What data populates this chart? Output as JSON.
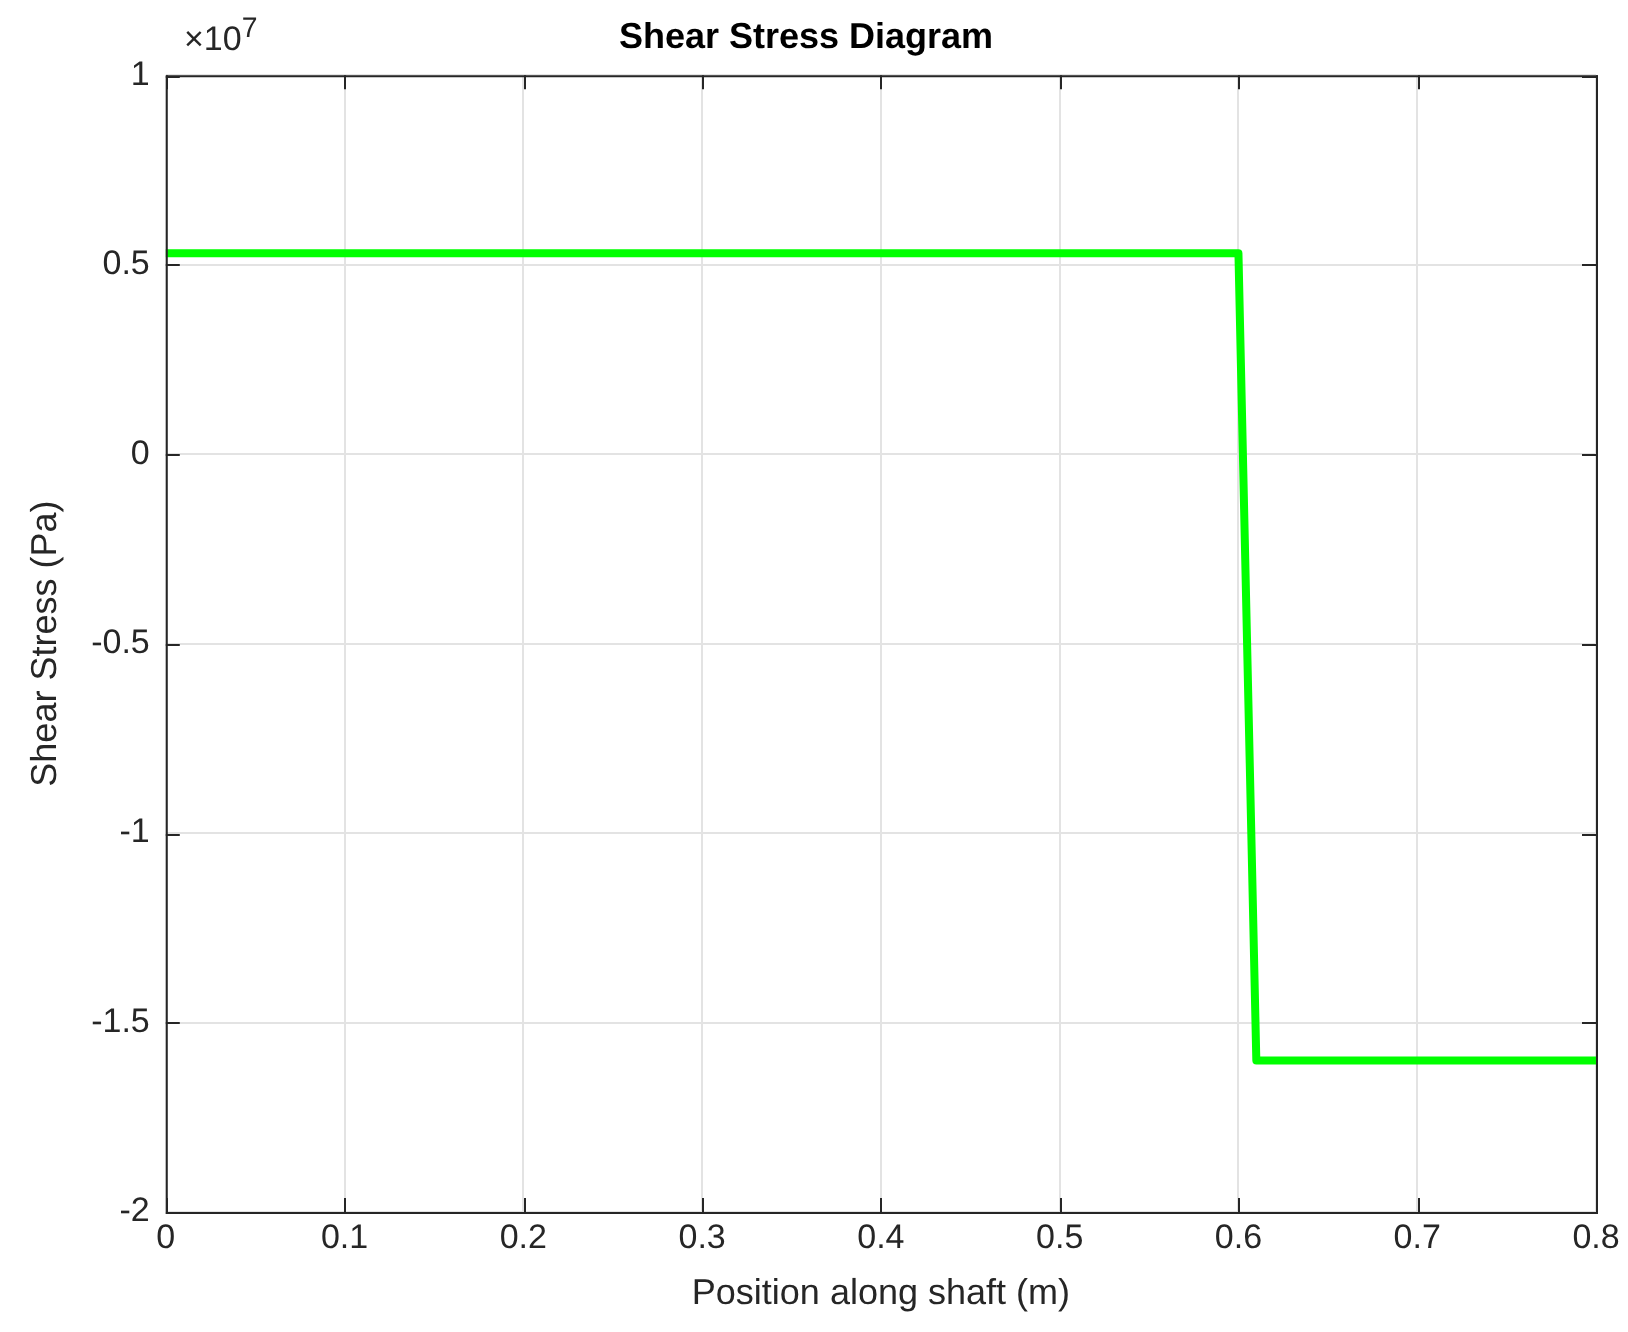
{
  "chart_data": {
    "type": "line",
    "title": "Shear Stress Diagram",
    "xlabel": "Position along shaft (m)",
    "ylabel": "Shear Stress (Pa)",
    "x": [
      0,
      0.6,
      0.61,
      0.8
    ],
    "series": [
      {
        "color": "#00ff00",
        "values": [
          0.53,
          0.53,
          -1.6,
          -1.6
        ]
      }
    ],
    "xlim": [
      0,
      0.8
    ],
    "xticks": [
      0,
      0.1,
      0.2,
      0.3,
      0.4,
      0.5,
      0.6,
      0.7,
      0.8
    ],
    "ylim": [
      -2,
      1
    ],
    "yticks": [
      -2,
      -1.5,
      -1,
      -0.5,
      0,
      0.5,
      1
    ],
    "annotations": [
      "×10$^{7}$"
    ],
    "grid": true,
    "legend": false,
    "marker": "none",
    "line_style": "solid"
  }
}
